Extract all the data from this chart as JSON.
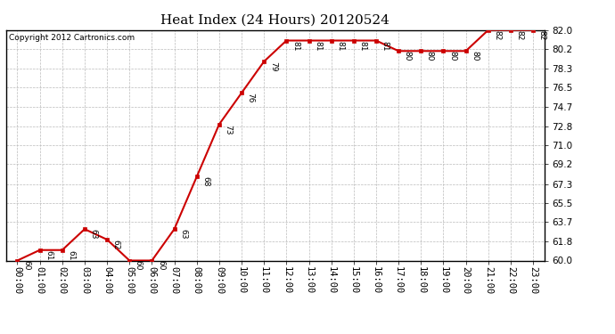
{
  "title": "Heat Index (24 Hours) 20120524",
  "copyright": "Copyright 2012 Cartronics.com",
  "x_labels": [
    "00:00",
    "01:00",
    "02:00",
    "03:00",
    "04:00",
    "05:00",
    "06:00",
    "07:00",
    "08:00",
    "09:00",
    "10:00",
    "11:00",
    "12:00",
    "13:00",
    "14:00",
    "15:00",
    "16:00",
    "17:00",
    "18:00",
    "19:00",
    "20:00",
    "21:00",
    "22:00",
    "23:00"
  ],
  "y_values": [
    60,
    61,
    61,
    63,
    62,
    60,
    60,
    63,
    68,
    73,
    76,
    79,
    81,
    81,
    81,
    81,
    81,
    80,
    80,
    80,
    80,
    82,
    82,
    82
  ],
  "ylim": [
    60.0,
    82.0
  ],
  "yticks": [
    60.0,
    61.8,
    63.7,
    65.5,
    67.3,
    69.2,
    71.0,
    72.8,
    74.7,
    76.5,
    78.3,
    80.2,
    82.0
  ],
  "line_color": "#cc0000",
  "marker_color": "#cc0000",
  "background_color": "#ffffff",
  "grid_color": "#bbbbbb",
  "title_fontsize": 11,
  "annotation_fontsize": 6.5,
  "copyright_fontsize": 6.5,
  "tick_fontsize": 7.5
}
